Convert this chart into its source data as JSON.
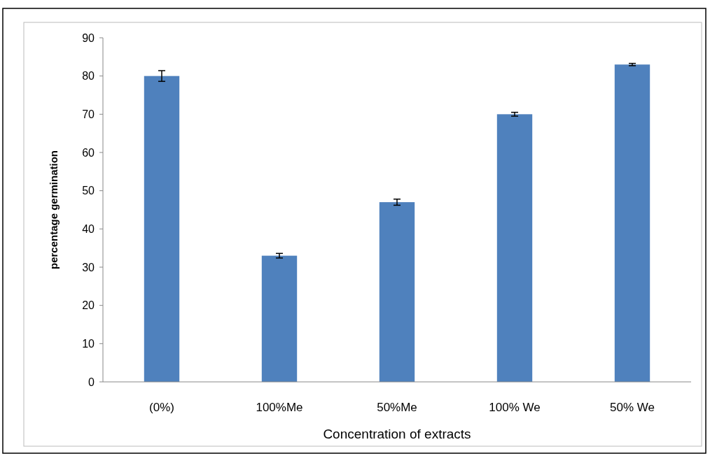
{
  "chart_data": {
    "type": "bar",
    "xlabel": "Concentration of extracts",
    "ylabel": "percentage germination",
    "categories": [
      "(0%)",
      "100%Me",
      "50%Me",
      "100% We",
      "50% We"
    ],
    "values": [
      80,
      33,
      47,
      70,
      83
    ],
    "errors": [
      1.4,
      0.6,
      0.8,
      0.5,
      0.3
    ],
    "color": "#4f81bd",
    "ylim": [
      0,
      90
    ],
    "yticks": [
      0,
      10,
      20,
      30,
      40,
      50,
      60,
      70,
      80,
      90
    ],
    "grid": false
  }
}
